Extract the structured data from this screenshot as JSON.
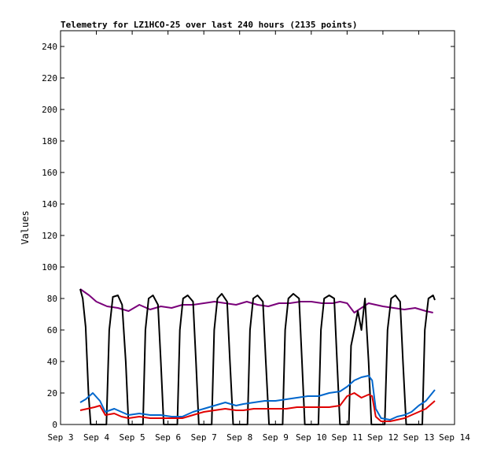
{
  "chart_data": {
    "type": "line",
    "title": "Telemetry for LZ1HCO-25 over last 240 hours (2135 points)",
    "ylabel": "Values",
    "xlabel": "",
    "x_tick_labels": [
      "Sep 3",
      "Sep 4",
      "Sep 5",
      "Sep 6",
      "Sep 7",
      "Sep 8",
      "Sep 9",
      "Sep 10",
      "Sep 11",
      "Sep 12",
      "Sep 13",
      "Sep 14"
    ],
    "xlim_days": [
      3,
      14
    ],
    "ylim": [
      0,
      250
    ],
    "y_ticks": [
      0,
      20,
      40,
      60,
      80,
      100,
      120,
      140,
      160,
      180,
      200,
      220,
      240
    ],
    "grid": false,
    "legend": "none",
    "colors": {
      "background": "#ffffff",
      "frame": "#000000"
    },
    "series": [
      {
        "color": "#7a007a",
        "points": [
          [
            3.55,
            86
          ],
          [
            3.8,
            82
          ],
          [
            4.0,
            78
          ],
          [
            4.3,
            75
          ],
          [
            4.6,
            74
          ],
          [
            4.9,
            72
          ],
          [
            5.2,
            76
          ],
          [
            5.5,
            73
          ],
          [
            5.8,
            75
          ],
          [
            6.1,
            74
          ],
          [
            6.4,
            76
          ],
          [
            6.7,
            76
          ],
          [
            7.0,
            77
          ],
          [
            7.3,
            78
          ],
          [
            7.6,
            77
          ],
          [
            7.9,
            76
          ],
          [
            8.2,
            78
          ],
          [
            8.5,
            76
          ],
          [
            8.8,
            75
          ],
          [
            9.1,
            77
          ],
          [
            9.4,
            77
          ],
          [
            9.7,
            78
          ],
          [
            10.0,
            78
          ],
          [
            10.3,
            77
          ],
          [
            10.6,
            77
          ],
          [
            10.8,
            78
          ],
          [
            11.0,
            77
          ],
          [
            11.2,
            71
          ],
          [
            11.4,
            74
          ],
          [
            11.6,
            77
          ],
          [
            11.8,
            76
          ],
          [
            12.0,
            75
          ],
          [
            12.3,
            74
          ],
          [
            12.6,
            73
          ],
          [
            12.9,
            74
          ],
          [
            13.2,
            72
          ],
          [
            13.4,
            71
          ]
        ]
      },
      {
        "color": "#000000",
        "points": [
          [
            3.55,
            86
          ],
          [
            3.62,
            80
          ],
          [
            3.7,
            62
          ],
          [
            3.78,
            20
          ],
          [
            3.84,
            0
          ],
          [
            4.28,
            0
          ],
          [
            4.36,
            60
          ],
          [
            4.46,
            81
          ],
          [
            4.6,
            82
          ],
          [
            4.72,
            76
          ],
          [
            4.82,
            40
          ],
          [
            4.9,
            0
          ],
          [
            5.3,
            0
          ],
          [
            5.37,
            60
          ],
          [
            5.46,
            80
          ],
          [
            5.58,
            82
          ],
          [
            5.72,
            76
          ],
          [
            5.8,
            40
          ],
          [
            5.88,
            0
          ],
          [
            6.26,
            0
          ],
          [
            6.33,
            60
          ],
          [
            6.42,
            80
          ],
          [
            6.55,
            82
          ],
          [
            6.7,
            78
          ],
          [
            6.78,
            40
          ],
          [
            6.86,
            0
          ],
          [
            7.22,
            0
          ],
          [
            7.29,
            60
          ],
          [
            7.38,
            80
          ],
          [
            7.5,
            83
          ],
          [
            7.65,
            78
          ],
          [
            7.73,
            40
          ],
          [
            7.82,
            0
          ],
          [
            8.22,
            0
          ],
          [
            8.29,
            60
          ],
          [
            8.38,
            80
          ],
          [
            8.5,
            82
          ],
          [
            8.65,
            78
          ],
          [
            8.73,
            40
          ],
          [
            8.82,
            0
          ],
          [
            9.2,
            0
          ],
          [
            9.27,
            60
          ],
          [
            9.36,
            80
          ],
          [
            9.5,
            83
          ],
          [
            9.66,
            80
          ],
          [
            9.74,
            40
          ],
          [
            9.82,
            0
          ],
          [
            10.2,
            0
          ],
          [
            10.27,
            60
          ],
          [
            10.36,
            80
          ],
          [
            10.5,
            82
          ],
          [
            10.64,
            80
          ],
          [
            10.72,
            40
          ],
          [
            10.8,
            0
          ],
          [
            11.05,
            0
          ],
          [
            11.11,
            50
          ],
          [
            11.2,
            60
          ],
          [
            11.3,
            72
          ],
          [
            11.4,
            60
          ],
          [
            11.5,
            80
          ],
          [
            11.6,
            40
          ],
          [
            11.68,
            0
          ],
          [
            12.05,
            0
          ],
          [
            12.13,
            60
          ],
          [
            12.23,
            80
          ],
          [
            12.35,
            82
          ],
          [
            12.48,
            78
          ],
          [
            12.56,
            40
          ],
          [
            12.65,
            0
          ],
          [
            13.1,
            0
          ],
          [
            13.17,
            60
          ],
          [
            13.27,
            80
          ],
          [
            13.4,
            82
          ],
          [
            13.45,
            79
          ]
        ]
      },
      {
        "color": "#0066cc",
        "points": [
          [
            3.55,
            14
          ],
          [
            3.7,
            16
          ],
          [
            3.9,
            20
          ],
          [
            4.1,
            15
          ],
          [
            4.25,
            8
          ],
          [
            4.5,
            10
          ],
          [
            4.7,
            8
          ],
          [
            4.9,
            6
          ],
          [
            5.2,
            7
          ],
          [
            5.5,
            6
          ],
          [
            5.8,
            6
          ],
          [
            6.1,
            5
          ],
          [
            6.4,
            5
          ],
          [
            6.7,
            8
          ],
          [
            7.0,
            10
          ],
          [
            7.3,
            12
          ],
          [
            7.6,
            14
          ],
          [
            7.9,
            12
          ],
          [
            8.1,
            13
          ],
          [
            8.4,
            14
          ],
          [
            8.7,
            15
          ],
          [
            9.0,
            15
          ],
          [
            9.3,
            16
          ],
          [
            9.6,
            17
          ],
          [
            9.9,
            18
          ],
          [
            10.2,
            18
          ],
          [
            10.5,
            20
          ],
          [
            10.8,
            21
          ],
          [
            11.0,
            24
          ],
          [
            11.2,
            28
          ],
          [
            11.4,
            30
          ],
          [
            11.6,
            31
          ],
          [
            11.7,
            28
          ],
          [
            11.8,
            10
          ],
          [
            11.95,
            4
          ],
          [
            12.2,
            3
          ],
          [
            12.4,
            5
          ],
          [
            12.6,
            6
          ],
          [
            12.8,
            8
          ],
          [
            13.0,
            12
          ],
          [
            13.2,
            15
          ],
          [
            13.45,
            22
          ]
        ]
      },
      {
        "color": "#e00000",
        "points": [
          [
            3.55,
            9
          ],
          [
            3.75,
            10
          ],
          [
            3.95,
            11
          ],
          [
            4.1,
            12
          ],
          [
            4.25,
            6
          ],
          [
            4.5,
            7
          ],
          [
            4.7,
            5
          ],
          [
            4.9,
            4
          ],
          [
            5.2,
            5
          ],
          [
            5.5,
            4
          ],
          [
            5.8,
            4
          ],
          [
            6.1,
            4
          ],
          [
            6.4,
            4
          ],
          [
            6.7,
            6
          ],
          [
            7.0,
            8
          ],
          [
            7.3,
            9
          ],
          [
            7.6,
            10
          ],
          [
            7.9,
            9
          ],
          [
            8.1,
            9
          ],
          [
            8.4,
            10
          ],
          [
            8.7,
            10
          ],
          [
            9.0,
            10
          ],
          [
            9.3,
            10
          ],
          [
            9.6,
            11
          ],
          [
            9.9,
            11
          ],
          [
            10.2,
            11
          ],
          [
            10.5,
            11
          ],
          [
            10.8,
            12
          ],
          [
            11.0,
            18
          ],
          [
            11.2,
            20
          ],
          [
            11.4,
            17
          ],
          [
            11.6,
            19
          ],
          [
            11.7,
            18
          ],
          [
            11.8,
            5
          ],
          [
            11.95,
            2
          ],
          [
            12.2,
            2
          ],
          [
            12.4,
            3
          ],
          [
            12.6,
            4
          ],
          [
            12.8,
            6
          ],
          [
            13.0,
            8
          ],
          [
            13.2,
            10
          ],
          [
            13.45,
            15
          ]
        ]
      }
    ]
  }
}
